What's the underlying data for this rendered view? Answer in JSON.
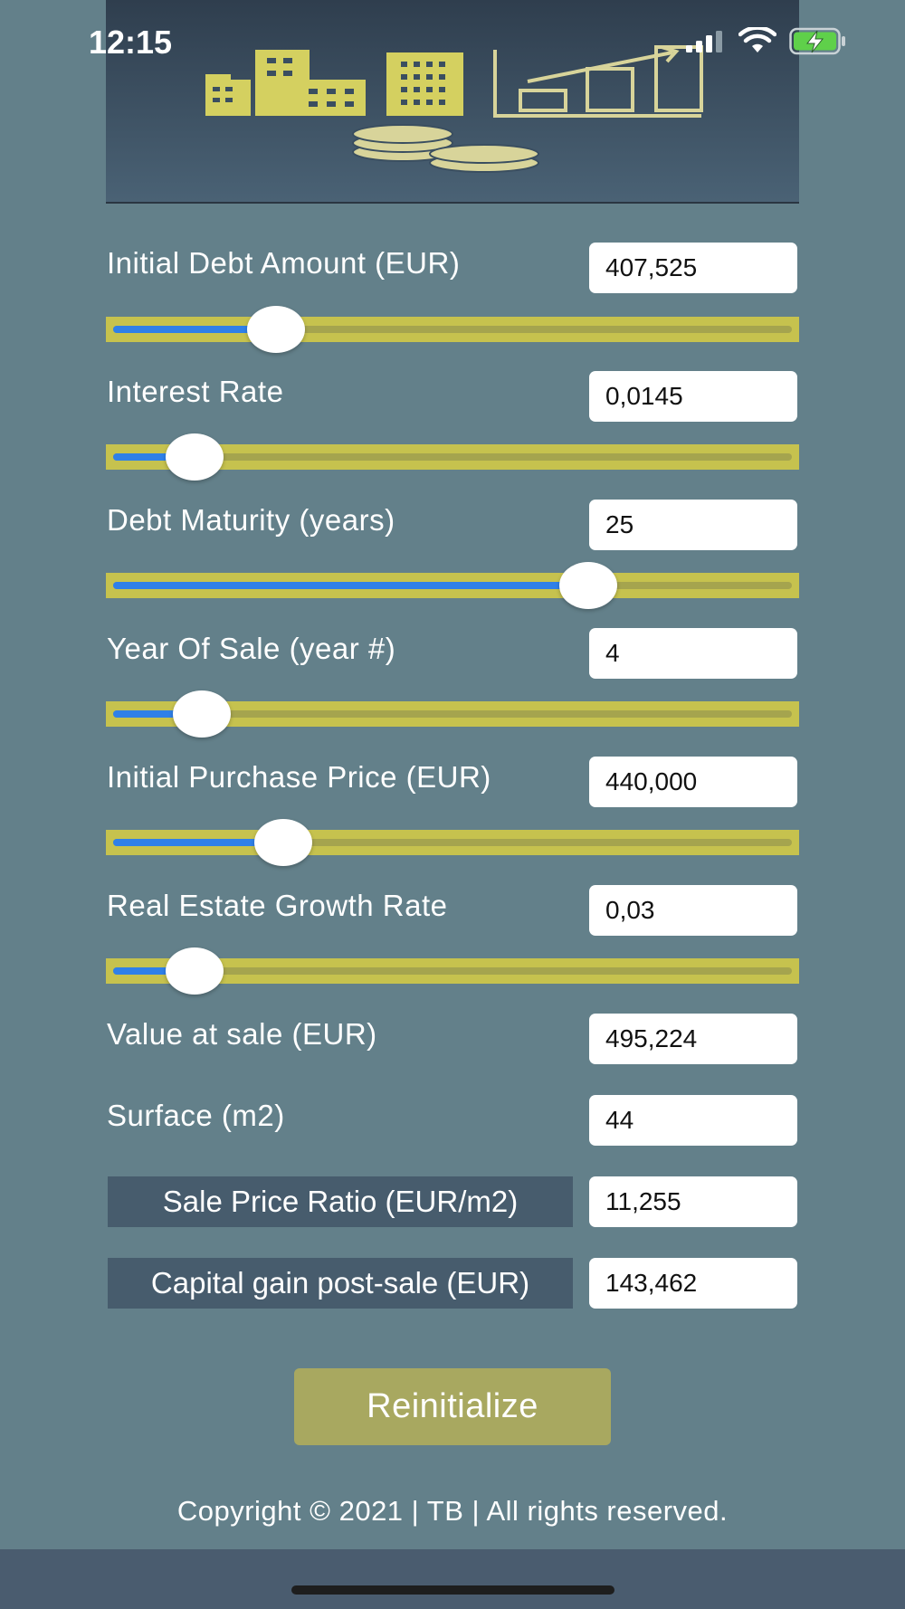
{
  "status_bar": {
    "time": "12:15",
    "icons": [
      "signal-icon",
      "wifi-icon",
      "battery-charging-icon"
    ]
  },
  "banner": {
    "icons": [
      "buildings-icon",
      "bar-chart-icon",
      "coins-icon"
    ]
  },
  "colors": {
    "background": "#63808a",
    "slider_bg": "#c6c24e",
    "slider_fill": "#2f80e8",
    "button": "#a8a860",
    "dark_label": "#475c6d"
  },
  "inputs": [
    {
      "label": "Initial Debt Amount (EUR)",
      "value": "407,525",
      "slider_fraction": 0.24
    },
    {
      "label": "Interest Rate",
      "value": "0,0145",
      "slider_fraction": 0.12
    },
    {
      "label": "Debt Maturity (years)",
      "value": "25",
      "slider_fraction": 0.7
    },
    {
      "label": "Year Of Sale (year #)",
      "value": "4",
      "slider_fraction": 0.13
    },
    {
      "label": "Initial Purchase Price (EUR)",
      "value": "440,000",
      "slider_fraction": 0.25
    },
    {
      "label": "Real Estate Growth Rate",
      "value": "0,03",
      "slider_fraction": 0.12
    }
  ],
  "outputs": {
    "value_at_sale": {
      "label": "Value at sale (EUR)",
      "value": "495,224"
    },
    "surface": {
      "label": "Surface (m2)",
      "value": "44"
    },
    "sale_price_ratio": {
      "label": "Sale Price Ratio (EUR/m2)",
      "value": "11,255"
    },
    "capital_gain": {
      "label": "Capital gain post-sale (EUR)",
      "value": "143,462"
    }
  },
  "reinitialize_label": "Reinitialize",
  "copyright": "Copyright © 2021 | TB | All rights reserved."
}
